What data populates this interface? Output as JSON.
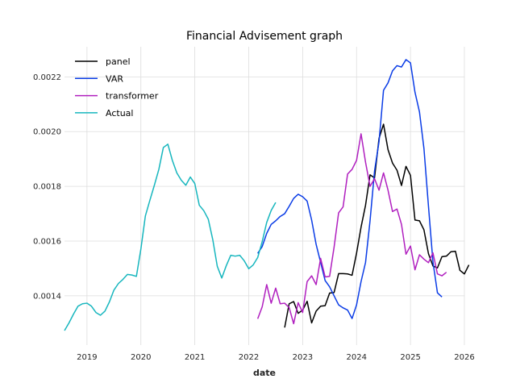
{
  "chart_data": {
    "type": "line",
    "title": "Financial Advisement graph",
    "xlabel": "date",
    "ylabel": "",
    "xlim": [
      "2018-08-01",
      "2026-01-01"
    ],
    "ylim": [
      0.00122,
      0.00231
    ],
    "x_ticks": [
      "2019",
      "2020",
      "2021",
      "2022",
      "2023",
      "2024",
      "2025",
      "2026"
    ],
    "y_ticks": [
      "0.0014",
      "0.0016",
      "0.0018",
      "0.0020",
      "0.0022"
    ],
    "y_tick_values": [
      0.0014,
      0.0016,
      0.0018,
      0.002,
      0.0022
    ],
    "grid": true,
    "legend_position": "upper-left",
    "series": [
      {
        "name": "panel",
        "color": "#000000",
        "points": [
          [
            "2022-09-01",
            0.001284
          ],
          [
            "2022-10-01",
            0.001371
          ],
          [
            "2022-11-01",
            0.001379
          ],
          [
            "2022-12-01",
            0.001336
          ],
          [
            "2023-01-01",
            0.001348
          ],
          [
            "2023-02-01",
            0.00138
          ],
          [
            "2023-03-01",
            0.001301
          ],
          [
            "2023-04-01",
            0.001344
          ],
          [
            "2023-05-01",
            0.001362
          ],
          [
            "2023-06-01",
            0.001364
          ],
          [
            "2023-07-01",
            0.00141
          ],
          [
            "2023-08-01",
            0.001412
          ],
          [
            "2023-09-01",
            0.001481
          ],
          [
            "2023-10-01",
            0.001481
          ],
          [
            "2023-11-01",
            0.00148
          ],
          [
            "2023-12-01",
            0.001475
          ],
          [
            "2024-01-01",
            0.001556
          ],
          [
            "2024-02-01",
            0.001651
          ],
          [
            "2024-03-01",
            0.001731
          ],
          [
            "2024-04-01",
            0.001842
          ],
          [
            "2024-05-01",
            0.001831
          ],
          [
            "2024-06-01",
            0.001975
          ],
          [
            "2024-07-01",
            0.002027
          ],
          [
            "2024-08-01",
            0.001934
          ],
          [
            "2024-09-01",
            0.001885
          ],
          [
            "2024-10-01",
            0.001859
          ],
          [
            "2024-11-01",
            0.001803
          ],
          [
            "2024-12-01",
            0.001873
          ],
          [
            "2025-01-01",
            0.00184
          ],
          [
            "2025-02-01",
            0.001677
          ],
          [
            "2025-03-01",
            0.001674
          ],
          [
            "2025-04-01",
            0.001641
          ],
          [
            "2025-05-01",
            0.001554
          ],
          [
            "2025-06-01",
            0.001509
          ],
          [
            "2025-07-01",
            0.001502
          ],
          [
            "2025-08-01",
            0.001543
          ],
          [
            "2025-09-01",
            0.001545
          ],
          [
            "2025-10-01",
            0.001561
          ],
          [
            "2025-11-01",
            0.001563
          ],
          [
            "2025-12-01",
            0.001493
          ],
          [
            "2026-01-01",
            0.00148
          ],
          [
            "2026-02-01",
            0.001513
          ]
        ]
      },
      {
        "name": "VAR",
        "color": "#0a3ce6",
        "points": [
          [
            "2022-03-01",
            0.001555
          ],
          [
            "2022-04-01",
            0.00158
          ],
          [
            "2022-05-01",
            0.001628
          ],
          [
            "2022-06-01",
            0.001661
          ],
          [
            "2022-07-01",
            0.001674
          ],
          [
            "2022-08-01",
            0.00169
          ],
          [
            "2022-09-01",
            0.0017
          ],
          [
            "2022-10-01",
            0.001727
          ],
          [
            "2022-11-01",
            0.001756
          ],
          [
            "2022-12-01",
            0.001771
          ],
          [
            "2023-01-01",
            0.001762
          ],
          [
            "2023-02-01",
            0.001746
          ],
          [
            "2023-03-01",
            0.001677
          ],
          [
            "2023-04-01",
            0.001588
          ],
          [
            "2023-05-01",
            0.001522
          ],
          [
            "2023-06-01",
            0.001456
          ],
          [
            "2023-07-01",
            0.001433
          ],
          [
            "2023-08-01",
            0.0014
          ],
          [
            "2023-09-01",
            0.001367
          ],
          [
            "2023-10-01",
            0.001356
          ],
          [
            "2023-11-01",
            0.001348
          ],
          [
            "2023-12-01",
            0.001317
          ],
          [
            "2024-01-01",
            0.001367
          ],
          [
            "2024-02-01",
            0.001452
          ],
          [
            "2024-03-01",
            0.001522
          ],
          [
            "2024-04-01",
            0.001674
          ],
          [
            "2024-05-01",
            0.001856
          ],
          [
            "2024-06-01",
            0.001963
          ],
          [
            "2024-07-01",
            0.002151
          ],
          [
            "2024-08-01",
            0.002178
          ],
          [
            "2024-09-01",
            0.002222
          ],
          [
            "2024-10-01",
            0.002241
          ],
          [
            "2024-11-01",
            0.002236
          ],
          [
            "2024-12-01",
            0.002263
          ],
          [
            "2025-01-01",
            0.002251
          ],
          [
            "2025-02-01",
            0.002144
          ],
          [
            "2025-03-01",
            0.002072
          ],
          [
            "2025-04-01",
            0.001938
          ],
          [
            "2025-05-01",
            0.001728
          ],
          [
            "2025-06-01",
            0.001524
          ],
          [
            "2025-07-01",
            0.001411
          ],
          [
            "2025-08-01",
            0.001396
          ]
        ]
      },
      {
        "name": "transformer",
        "color": "#b01fbf",
        "points": [
          [
            "2022-03-01",
            0.001316
          ],
          [
            "2022-04-01",
            0.00136
          ],
          [
            "2022-05-01",
            0.001441
          ],
          [
            "2022-06-01",
            0.001373
          ],
          [
            "2022-07-01",
            0.001428
          ],
          [
            "2022-08-01",
            0.001371
          ],
          [
            "2022-09-01",
            0.001373
          ],
          [
            "2022-10-01",
            0.001357
          ],
          [
            "2022-11-01",
            0.001298
          ],
          [
            "2022-12-01",
            0.001375
          ],
          [
            "2023-01-01",
            0.001339
          ],
          [
            "2023-02-01",
            0.001452
          ],
          [
            "2023-03-01",
            0.001473
          ],
          [
            "2023-04-01",
            0.001441
          ],
          [
            "2023-05-01",
            0.001537
          ],
          [
            "2023-06-01",
            0.001469
          ],
          [
            "2023-07-01",
            0.001471
          ],
          [
            "2023-08-01",
            0.001578
          ],
          [
            "2023-09-01",
            0.001703
          ],
          [
            "2023-10-01",
            0.001725
          ],
          [
            "2023-11-01",
            0.001845
          ],
          [
            "2023-12-01",
            0.001862
          ],
          [
            "2024-01-01",
            0.001895
          ],
          [
            "2024-02-01",
            0.001992
          ],
          [
            "2024-03-01",
            0.001888
          ],
          [
            "2024-04-01",
            0.0018
          ],
          [
            "2024-05-01",
            0.001828
          ],
          [
            "2024-06-01",
            0.001786
          ],
          [
            "2024-07-01",
            0.001849
          ],
          [
            "2024-08-01",
            0.001786
          ],
          [
            "2024-09-01",
            0.001708
          ],
          [
            "2024-10-01",
            0.001717
          ],
          [
            "2024-11-01",
            0.001661
          ],
          [
            "2024-12-01",
            0.001552
          ],
          [
            "2025-01-01",
            0.001582
          ],
          [
            "2025-02-01",
            0.001495
          ],
          [
            "2025-03-01",
            0.00155
          ],
          [
            "2025-04-01",
            0.001534
          ],
          [
            "2025-05-01",
            0.001521
          ],
          [
            "2025-06-01",
            0.001557
          ],
          [
            "2025-07-01",
            0.00148
          ],
          [
            "2025-08-01",
            0.001473
          ],
          [
            "2025-09-01",
            0.001486
          ]
        ]
      },
      {
        "name": "Actual",
        "color": "#17b6be",
        "points": [
          [
            "2018-08-01",
            0.001273
          ],
          [
            "2018-09-01",
            0.001301
          ],
          [
            "2018-10-01",
            0.001333
          ],
          [
            "2018-11-01",
            0.001362
          ],
          [
            "2018-12-01",
            0.001371
          ],
          [
            "2019-01-01",
            0.001373
          ],
          [
            "2019-02-01",
            0.001362
          ],
          [
            "2019-03-01",
            0.001339
          ],
          [
            "2019-04-01",
            0.001329
          ],
          [
            "2019-05-01",
            0.001344
          ],
          [
            "2019-06-01",
            0.001378
          ],
          [
            "2019-07-01",
            0.001421
          ],
          [
            "2019-08-01",
            0.001445
          ],
          [
            "2019-09-01",
            0.00146
          ],
          [
            "2019-10-01",
            0.001478
          ],
          [
            "2019-11-01",
            0.001476
          ],
          [
            "2019-12-01",
            0.001471
          ],
          [
            "2020-01-01",
            0.001571
          ],
          [
            "2020-02-01",
            0.001692
          ],
          [
            "2020-03-01",
            0.001749
          ],
          [
            "2020-04-01",
            0.001804
          ],
          [
            "2020-05-01",
            0.001862
          ],
          [
            "2020-06-01",
            0.001942
          ],
          [
            "2020-07-01",
            0.001954
          ],
          [
            "2020-08-01",
            0.001895
          ],
          [
            "2020-09-01",
            0.001849
          ],
          [
            "2020-10-01",
            0.001822
          ],
          [
            "2020-11-01",
            0.001804
          ],
          [
            "2020-12-01",
            0.001834
          ],
          [
            "2021-01-01",
            0.00181
          ],
          [
            "2021-02-01",
            0.001731
          ],
          [
            "2021-03-01",
            0.001711
          ],
          [
            "2021-04-01",
            0.00168
          ],
          [
            "2021-05-01",
            0.001605
          ],
          [
            "2021-06-01",
            0.001508
          ],
          [
            "2021-07-01",
            0.001465
          ],
          [
            "2021-08-01",
            0.00151
          ],
          [
            "2021-09-01",
            0.001548
          ],
          [
            "2021-10-01",
            0.001545
          ],
          [
            "2021-11-01",
            0.001548
          ],
          [
            "2021-12-01",
            0.001528
          ],
          [
            "2022-01-01",
            0.001499
          ],
          [
            "2022-02-01",
            0.001513
          ],
          [
            "2022-03-01",
            0.00154
          ],
          [
            "2022-04-01",
            0.001598
          ],
          [
            "2022-05-01",
            0.001668
          ],
          [
            "2022-06-01",
            0.001712
          ],
          [
            "2022-07-01",
            0.001741
          ]
        ]
      }
    ]
  }
}
